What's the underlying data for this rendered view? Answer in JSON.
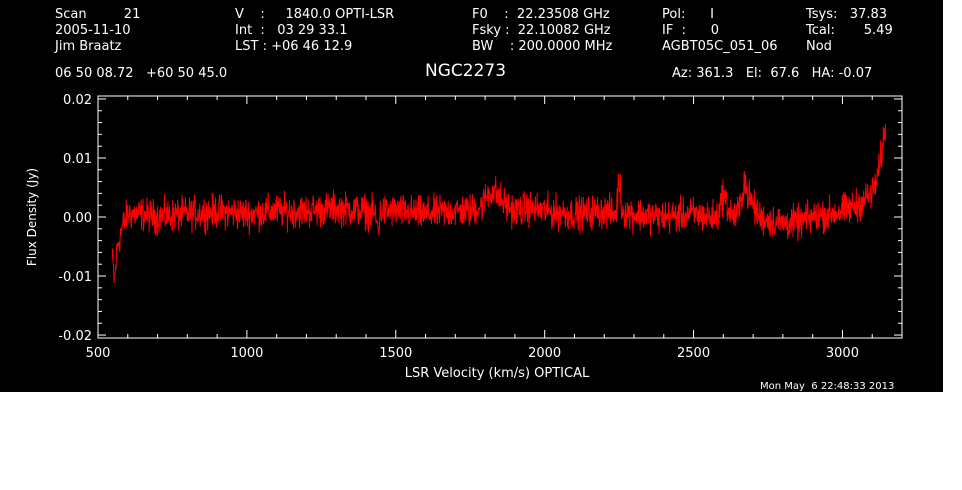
{
  "header": {
    "row1": {
      "scan": "Scan         21",
      "v": "V    :     1840.0 OPTI-LSR",
      "f0": "F0    :  22.23508 GHz",
      "pol": "Pol:      I",
      "tsys": "Tsys:   37.83"
    },
    "row2": {
      "date": "2005-11-10",
      "int": "Int  :   03 29 33.1",
      "fsky": "Fsky :  22.10082 GHz",
      "if": "IF  :      0",
      "tcal": "Tcal:       5.49"
    },
    "row3": {
      "observer": "Jim Braatz",
      "lst": "LST : +06 46 12.9",
      "bw": "BW    : 200.0000 MHz",
      "project": "AGBT05C_051_06",
      "nod": "Nod"
    },
    "coords": "06 50 08.72   +60 50 45.0",
    "source": "NGC2273",
    "azelha": "Az: 361.3   El:  67.6   HA: -0.07"
  },
  "timestamp": "Mon May  6 22:48:33 2013",
  "colors": {
    "background": "#000000",
    "series": "#ff0000",
    "axes": "#ffffff"
  },
  "chart_data": {
    "type": "line",
    "xlabel": "LSR Velocity (km/s) OPTICAL",
    "ylabel": "Flux Density (Jy)",
    "xlim": [
      500,
      3200
    ],
    "ylim": [
      -0.0205,
      0.0205
    ],
    "xticks": [
      500,
      1000,
      1500,
      2000,
      2500,
      3000
    ],
    "xtick_labels": [
      "500",
      "1000",
      "1500",
      "2000",
      "2500",
      "3000"
    ],
    "yticks": [
      -0.02,
      -0.01,
      0.0,
      0.01,
      0.02
    ],
    "ytick_labels": [
      "-0.02",
      "-0.01",
      "0.00",
      "0.01",
      "0.02"
    ],
    "grid": false,
    "series": [
      {
        "color": "#ff0000",
        "x": [
          548,
          555,
          565,
          580,
          600,
          650,
          700,
          800,
          900,
          1000,
          1100,
          1200,
          1300,
          1400,
          1430,
          1440,
          1450,
          1500,
          1600,
          1700,
          1750,
          1790,
          1810,
          1830,
          1850,
          1870,
          1900,
          1950,
          2000,
          2100,
          2200,
          2240,
          2250,
          2260,
          2300,
          2400,
          2500,
          2550,
          2580,
          2600,
          2620,
          2640,
          2660,
          2670,
          2680,
          2700,
          2720,
          2750,
          2800,
          2850,
          2900,
          2950,
          3000,
          3050,
          3100,
          3120,
          3135,
          3145
        ],
        "y": [
          -0.007,
          -0.011,
          -0.005,
          -0.002,
          0.0005,
          0.0005,
          0.0,
          0.0005,
          0.001,
          0.0005,
          0.001,
          0.001,
          0.0015,
          0.001,
          0.0005,
          -0.002,
          0.001,
          0.001,
          0.0005,
          0.001,
          0.001,
          0.002,
          0.004,
          0.0045,
          0.003,
          0.002,
          0.001,
          0.0015,
          0.001,
          0.0005,
          0.001,
          0.0005,
          0.007,
          0.001,
          0.0005,
          0.0,
          0.0005,
          0.0,
          0.0,
          0.004,
          0.001,
          0.0,
          0.002,
          0.007,
          0.004,
          0.002,
          0.0,
          -0.0005,
          -0.001,
          -0.001,
          0.0,
          0.0005,
          0.001,
          0.002,
          0.004,
          0.007,
          0.012,
          0.0155
        ]
      }
    ]
  }
}
